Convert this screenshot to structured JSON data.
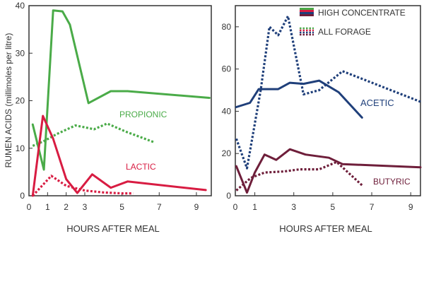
{
  "ylabel": "RUMEN ACIDS (millimoles per litre)",
  "legend": {
    "high_concentrate": "HIGH CONCENTRATE",
    "all_forage": "ALL FORAGE"
  },
  "chart_data": [
    {
      "type": "line",
      "panel": "left",
      "xlabel": "HOURS AFTER MEAL",
      "ylabel": "RUMEN ACIDS (millimoles per litre)",
      "xlim": [
        0,
        9.8
      ],
      "ylim": [
        0,
        40
      ],
      "xticks": [
        0,
        1,
        2,
        3,
        5,
        7,
        9
      ],
      "yticks": [
        0,
        10,
        20,
        30,
        40
      ],
      "grid": false,
      "annotations": [
        "PROPIONIC",
        "LACTIC"
      ],
      "series": [
        {
          "group": "PROPIONIC",
          "diet": "HIGH CONCENTRATE",
          "color": "#4aab48",
          "style": "solid",
          "x": [
            0.2,
            0.8,
            1.3,
            1.8,
            2.2,
            3.2,
            4.4,
            5.3,
            9.7
          ],
          "y": [
            15,
            5.5,
            39,
            38.8,
            36,
            19.5,
            22,
            22,
            20.6
          ]
        },
        {
          "group": "PROPIONIC",
          "diet": "ALL FORAGE",
          "color": "#4aab48",
          "style": "dotted",
          "x": [
            0.2,
            0.8,
            1.5,
            2.5,
            3.5,
            4.2,
            5.2,
            6.7
          ],
          "y": [
            10.5,
            11.5,
            13,
            14.8,
            14,
            15.2,
            13.5,
            11.3
          ]
        },
        {
          "group": "LACTIC",
          "diet": "HIGH CONCENTRATE",
          "color": "#d81c42",
          "style": "solid",
          "x": [
            0.2,
            0.75,
            1.3,
            2.0,
            2.6,
            3.4,
            4.4,
            5.3,
            9.5
          ],
          "y": [
            0,
            16.8,
            12,
            3.5,
            0.6,
            4.5,
            1.7,
            3.0,
            1.2
          ]
        },
        {
          "group": "LACTIC",
          "diet": "ALL FORAGE",
          "color": "#d81c42",
          "style": "dotted",
          "x": [
            0.2,
            1.2,
            2.0,
            3.0,
            4.0,
            5.0,
            5.6
          ],
          "y": [
            0,
            4.2,
            2.1,
            1.1,
            0.7,
            0.5,
            0.5
          ]
        }
      ]
    },
    {
      "type": "line",
      "panel": "right",
      "xlabel": "HOURS AFTER MEAL",
      "xlim": [
        0,
        9.5
      ],
      "ylim": [
        0,
        90
      ],
      "xticks": [
        0,
        1,
        3,
        5,
        7,
        9
      ],
      "yticks": [
        0,
        20,
        40,
        60,
        80
      ],
      "grid": false,
      "legend_placement": "top-right",
      "annotations": [
        "ACETIC",
        "BUTYRIC"
      ],
      "series": [
        {
          "group": "ACETIC",
          "diet": "HIGH CONCENTRATE",
          "color": "#1f3f7a",
          "style": "solid",
          "x": [
            0.05,
            0.75,
            1.2,
            2.2,
            2.8,
            3.5,
            4.3,
            5.3,
            6.5
          ],
          "y": [
            42,
            44,
            50.5,
            50.5,
            53.5,
            53,
            54.5,
            49,
            37
          ]
        },
        {
          "group": "ACETIC",
          "diet": "ALL FORAGE",
          "color": "#1f3f7a",
          "style": "dotted",
          "x": [
            0.05,
            0.6,
            1.3,
            1.75,
            2.2,
            2.7,
            3.5,
            4.3,
            5.5,
            9.5
          ],
          "y": [
            27,
            13,
            50,
            80,
            76,
            85,
            48,
            50,
            59,
            44.5
          ]
        },
        {
          "group": "BUTYRIC",
          "diet": "HIGH CONCENTRATE",
          "color": "#6e1e3a",
          "style": "solid",
          "x": [
            0.05,
            0.6,
            1.0,
            1.5,
            2.1,
            2.8,
            3.6,
            4.8,
            5.5,
            9.5
          ],
          "y": [
            14,
            1.5,
            11,
            19.5,
            17,
            22,
            19.5,
            18,
            15,
            13.5
          ]
        },
        {
          "group": "BUTYRIC",
          "diet": "ALL FORAGE",
          "color": "#6e1e3a",
          "style": "dotted",
          "x": [
            0.05,
            0.8,
            1.5,
            2.5,
            3.3,
            4.3,
            5.2,
            6.5
          ],
          "y": [
            2.5,
            8.5,
            11,
            11.5,
            12.5,
            12.5,
            16,
            5
          ]
        }
      ]
    }
  ]
}
